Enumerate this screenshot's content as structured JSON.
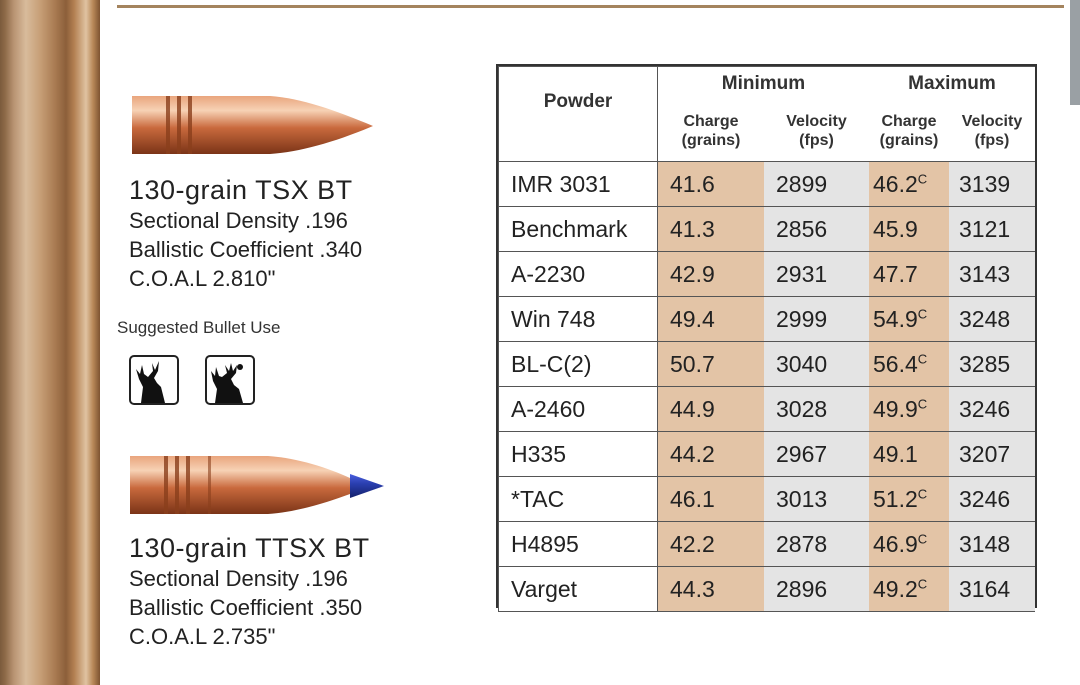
{
  "bullets": [
    {
      "name": "130-grain TSX BT",
      "sectional_density": "Sectional Density  .196",
      "ballistic_coefficient": "Ballistic Coefficient  .340",
      "coal": "C.O.A.L 2.810\""
    },
    {
      "name": "130-grain TTSX BT",
      "sectional_density": "Sectional Density  .196",
      "ballistic_coefficient": "Ballistic Coefficient  .350",
      "coal": "C.O.A.L 2.735\""
    }
  ],
  "suggested_use_label": "Suggested Bullet Use",
  "icons": [
    "deer-icon",
    "elk-icon"
  ],
  "colors": {
    "charge_bg": "#e3c4a6",
    "velocity_bg": "#e4e4e4",
    "tip_blue": "#2a3fb0"
  },
  "table": {
    "powder_header": "Powder",
    "min_header": "Minimum",
    "max_header": "Maximum",
    "charge_header": [
      "Charge",
      "(grains)"
    ],
    "velocity_header": [
      "Velocity",
      "(fps)"
    ],
    "rows": [
      {
        "powder": "IMR 3031",
        "min_charge": "41.6",
        "min_vel": "2899",
        "max_charge": "46.2",
        "max_c": "C",
        "max_vel": "3139"
      },
      {
        "powder": "Benchmark",
        "min_charge": "41.3",
        "min_vel": "2856",
        "max_charge": "45.9",
        "max_c": "",
        "max_vel": "3121"
      },
      {
        "powder": "A-2230",
        "min_charge": "42.9",
        "min_vel": "2931",
        "max_charge": "47.7",
        "max_c": "",
        "max_vel": "3143"
      },
      {
        "powder": "Win 748",
        "min_charge": "49.4",
        "min_vel": "2999",
        "max_charge": "54.9",
        "max_c": "C",
        "max_vel": "3248"
      },
      {
        "powder": "BL-C(2)",
        "min_charge": "50.7",
        "min_vel": "3040",
        "max_charge": "56.4",
        "max_c": "C",
        "max_vel": "3285"
      },
      {
        "powder": "A-2460",
        "min_charge": "44.9",
        "min_vel": "3028",
        "max_charge": "49.9",
        "max_c": "C",
        "max_vel": "3246"
      },
      {
        "powder": "H335",
        "min_charge": "44.2",
        "min_vel": "2967",
        "max_charge": "49.1",
        "max_c": "",
        "max_vel": "3207"
      },
      {
        "powder": "*TAC",
        "min_charge": "46.1",
        "min_vel": "3013",
        "max_charge": "51.2",
        "max_c": "C",
        "max_vel": "3246"
      },
      {
        "powder": "H4895",
        "min_charge": "42.2",
        "min_vel": "2878",
        "max_charge": "46.9",
        "max_c": "C",
        "max_vel": "3148"
      },
      {
        "powder": "Varget",
        "min_charge": "44.3",
        "min_vel": "2896",
        "max_charge": "49.2",
        "max_c": "C",
        "max_vel": "3164"
      }
    ]
  }
}
